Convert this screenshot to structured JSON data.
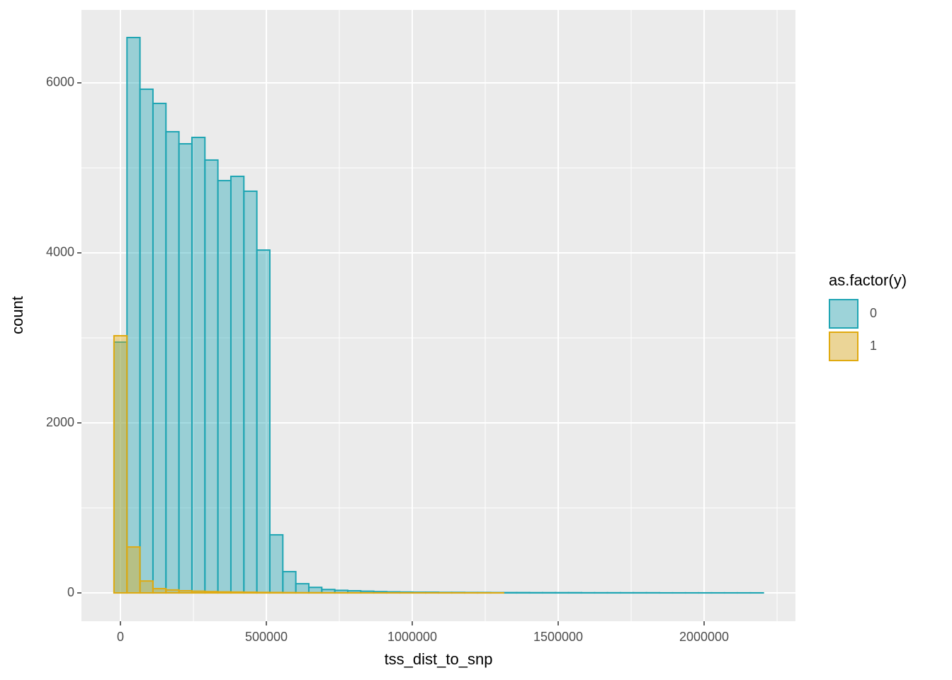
{
  "chart_data": {
    "type": "histogram",
    "x_label": "tss_dist_to_snp",
    "y_label": "count",
    "legend_title": "as.factor(y)",
    "legend_position": "right",
    "grid": true,
    "bins": [
      -22000,
      22500,
      67000,
      111500,
      156000,
      200500,
      245000,
      289500,
      334000,
      378500,
      423000,
      467500,
      512000,
      556500,
      601000,
      645500,
      690000,
      734500,
      779000,
      823500,
      868000,
      912500,
      957000,
      1001500,
      1046000,
      1090500,
      1135000,
      1179500,
      1224000,
      1268500,
      1313000,
      1357500,
      1402000,
      1446500,
      1491000,
      1535500,
      1580000,
      1624500,
      1669000,
      1713500,
      1758000,
      1802500,
      1847000,
      1891500,
      1936000,
      1980500,
      2025000,
      2069500,
      2114000,
      2158500,
      2203000
    ],
    "series": [
      {
        "name": "0",
        "color": "#1fa5b3",
        "values": [
          2950,
          6533,
          5925,
          5758,
          5425,
          5283,
          5358,
          5092,
          4850,
          4900,
          4725,
          4033,
          683,
          250,
          108,
          65,
          40,
          30,
          25,
          20,
          15,
          12,
          10,
          8,
          8,
          6,
          6,
          5,
          5,
          4,
          4,
          4,
          3,
          3,
          3,
          3,
          2,
          2,
          2,
          2,
          2,
          2,
          1,
          1,
          1,
          1,
          1,
          1,
          1,
          1
        ]
      },
      {
        "name": "1",
        "color": "#e0aa10",
        "values": [
          3025,
          540,
          140,
          50,
          35,
          25,
          20,
          15,
          12,
          10,
          8,
          6,
          5,
          4,
          3,
          3,
          2,
          2,
          2,
          1,
          1,
          1,
          1,
          1,
          1,
          1,
          1,
          1,
          1,
          1,
          0,
          0,
          0,
          0,
          0,
          0,
          0,
          0,
          0,
          0,
          0,
          0,
          0,
          0,
          0,
          0,
          0,
          0,
          0,
          0
        ]
      }
    ],
    "xlim": [
      -133500,
      2313000
    ],
    "ylim": [
      -333,
      6858
    ],
    "xticks": [
      0,
      500000,
      1000000,
      1500000,
      2000000
    ],
    "yticks": [
      0,
      2000,
      4000,
      6000
    ]
  }
}
